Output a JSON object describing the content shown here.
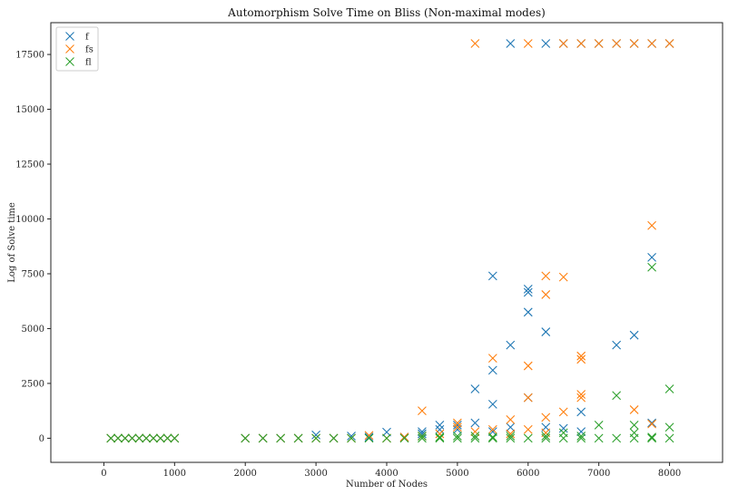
{
  "chart_data": {
    "type": "scatter",
    "title": "Automorphism Solve Time on Bliss (Non-maximal modes)",
    "xlabel": "Number of Nodes",
    "ylabel": "Log of Solve time",
    "xlim": [
      -750,
      8750
    ],
    "ylim": [
      -1100,
      18950
    ],
    "xticks": [
      0,
      1000,
      2000,
      3000,
      4000,
      5000,
      6000,
      7000,
      8000
    ],
    "yticks": [
      0,
      2500,
      5000,
      7500,
      10000,
      12500,
      15000,
      17500
    ],
    "grid": false,
    "legend_position": "top-left",
    "marker": "x",
    "series": [
      {
        "name": "f",
        "color": "#1f77b4",
        "points": [
          [
            100,
            0
          ],
          [
            200,
            0
          ],
          [
            300,
            0
          ],
          [
            400,
            0
          ],
          [
            500,
            0
          ],
          [
            600,
            0
          ],
          [
            700,
            0
          ],
          [
            800,
            0
          ],
          [
            900,
            0
          ],
          [
            1000,
            0
          ],
          [
            2000,
            0
          ],
          [
            2250,
            0
          ],
          [
            2500,
            0
          ],
          [
            2750,
            0
          ],
          [
            3000,
            150
          ],
          [
            3250,
            0
          ],
          [
            3500,
            100
          ],
          [
            3750,
            50
          ],
          [
            4000,
            280
          ],
          [
            4250,
            50
          ],
          [
            4500,
            300
          ],
          [
            4500,
            200
          ],
          [
            4750,
            600
          ],
          [
            4750,
            400
          ],
          [
            5000,
            600
          ],
          [
            5000,
            400
          ],
          [
            5250,
            2250
          ],
          [
            5250,
            700
          ],
          [
            5500,
            7400
          ],
          [
            5500,
            3100
          ],
          [
            5500,
            1550
          ],
          [
            5500,
            300
          ],
          [
            5750,
            18000
          ],
          [
            5750,
            4250
          ],
          [
            5750,
            500
          ],
          [
            6000,
            6800
          ],
          [
            6000,
            6650
          ],
          [
            6000,
            5750
          ],
          [
            6000,
            1850
          ],
          [
            6250,
            18000
          ],
          [
            6250,
            4850
          ],
          [
            6250,
            500
          ],
          [
            6500,
            18000
          ],
          [
            6500,
            450
          ],
          [
            6750,
            18000
          ],
          [
            6750,
            1200
          ],
          [
            6750,
            300
          ],
          [
            7000,
            18000
          ],
          [
            7250,
            18000
          ],
          [
            7250,
            4250
          ],
          [
            7500,
            18000
          ],
          [
            7500,
            4700
          ],
          [
            7750,
            18000
          ],
          [
            7750,
            8250
          ],
          [
            7750,
            700
          ],
          [
            8000,
            18000
          ]
        ]
      },
      {
        "name": "fs",
        "color": "#ff7f0e",
        "points": [
          [
            100,
            0
          ],
          [
            200,
            0
          ],
          [
            300,
            0
          ],
          [
            400,
            0
          ],
          [
            500,
            0
          ],
          [
            600,
            0
          ],
          [
            700,
            0
          ],
          [
            800,
            0
          ],
          [
            900,
            0
          ],
          [
            1000,
            0
          ],
          [
            2000,
            0
          ],
          [
            2250,
            0
          ],
          [
            2500,
            0
          ],
          [
            2750,
            0
          ],
          [
            3000,
            0
          ],
          [
            3250,
            0
          ],
          [
            3500,
            0
          ],
          [
            3750,
            130
          ],
          [
            4000,
            0
          ],
          [
            4250,
            50
          ],
          [
            4500,
            1250
          ],
          [
            4500,
            100
          ],
          [
            4750,
            200
          ],
          [
            5000,
            700
          ],
          [
            5000,
            500
          ],
          [
            5250,
            18000
          ],
          [
            5250,
            300
          ],
          [
            5500,
            3650
          ],
          [
            5500,
            400
          ],
          [
            5750,
            850
          ],
          [
            5750,
            200
          ],
          [
            6000,
            18000
          ],
          [
            6000,
            3300
          ],
          [
            6000,
            1850
          ],
          [
            6000,
            400
          ],
          [
            6250,
            7400
          ],
          [
            6250,
            6550
          ],
          [
            6250,
            950
          ],
          [
            6250,
            250
          ],
          [
            6500,
            18000
          ],
          [
            6500,
            7350
          ],
          [
            6500,
            1200
          ],
          [
            6750,
            18000
          ],
          [
            6750,
            3750
          ],
          [
            6750,
            3600
          ],
          [
            6750,
            2000
          ],
          [
            6750,
            1850
          ],
          [
            7000,
            18000
          ],
          [
            7250,
            18000
          ],
          [
            7500,
            18000
          ],
          [
            7500,
            1300
          ],
          [
            7750,
            18000
          ],
          [
            7750,
            9700
          ],
          [
            7750,
            650
          ],
          [
            8000,
            18000
          ]
        ]
      },
      {
        "name": "fl",
        "color": "#2ca02c",
        "points": [
          [
            100,
            0
          ],
          [
            200,
            0
          ],
          [
            300,
            0
          ],
          [
            400,
            0
          ],
          [
            500,
            0
          ],
          [
            600,
            0
          ],
          [
            700,
            0
          ],
          [
            800,
            0
          ],
          [
            900,
            0
          ],
          [
            1000,
            0
          ],
          [
            2000,
            0
          ],
          [
            2250,
            0
          ],
          [
            2500,
            0
          ],
          [
            2750,
            0
          ],
          [
            3000,
            0
          ],
          [
            3250,
            0
          ],
          [
            3500,
            0
          ],
          [
            3750,
            0
          ],
          [
            4000,
            0
          ],
          [
            4250,
            0
          ],
          [
            4500,
            0
          ],
          [
            4500,
            100
          ],
          [
            4750,
            0
          ],
          [
            4750,
            50
          ],
          [
            5000,
            0
          ],
          [
            5000,
            100
          ],
          [
            5250,
            0
          ],
          [
            5250,
            100
          ],
          [
            5500,
            0
          ],
          [
            5500,
            50
          ],
          [
            5750,
            0
          ],
          [
            5750,
            100
          ],
          [
            6000,
            0
          ],
          [
            6250,
            0
          ],
          [
            6250,
            100
          ],
          [
            6500,
            0
          ],
          [
            6500,
            250
          ],
          [
            6750,
            0
          ],
          [
            6750,
            100
          ],
          [
            7000,
            0
          ],
          [
            7000,
            600
          ],
          [
            7250,
            0
          ],
          [
            7250,
            1950
          ],
          [
            7500,
            0
          ],
          [
            7500,
            600
          ],
          [
            7500,
            250
          ],
          [
            7750,
            0
          ],
          [
            7750,
            7800
          ],
          [
            7750,
            50
          ],
          [
            8000,
            0
          ],
          [
            8000,
            2250
          ],
          [
            8000,
            500
          ]
        ]
      }
    ]
  }
}
